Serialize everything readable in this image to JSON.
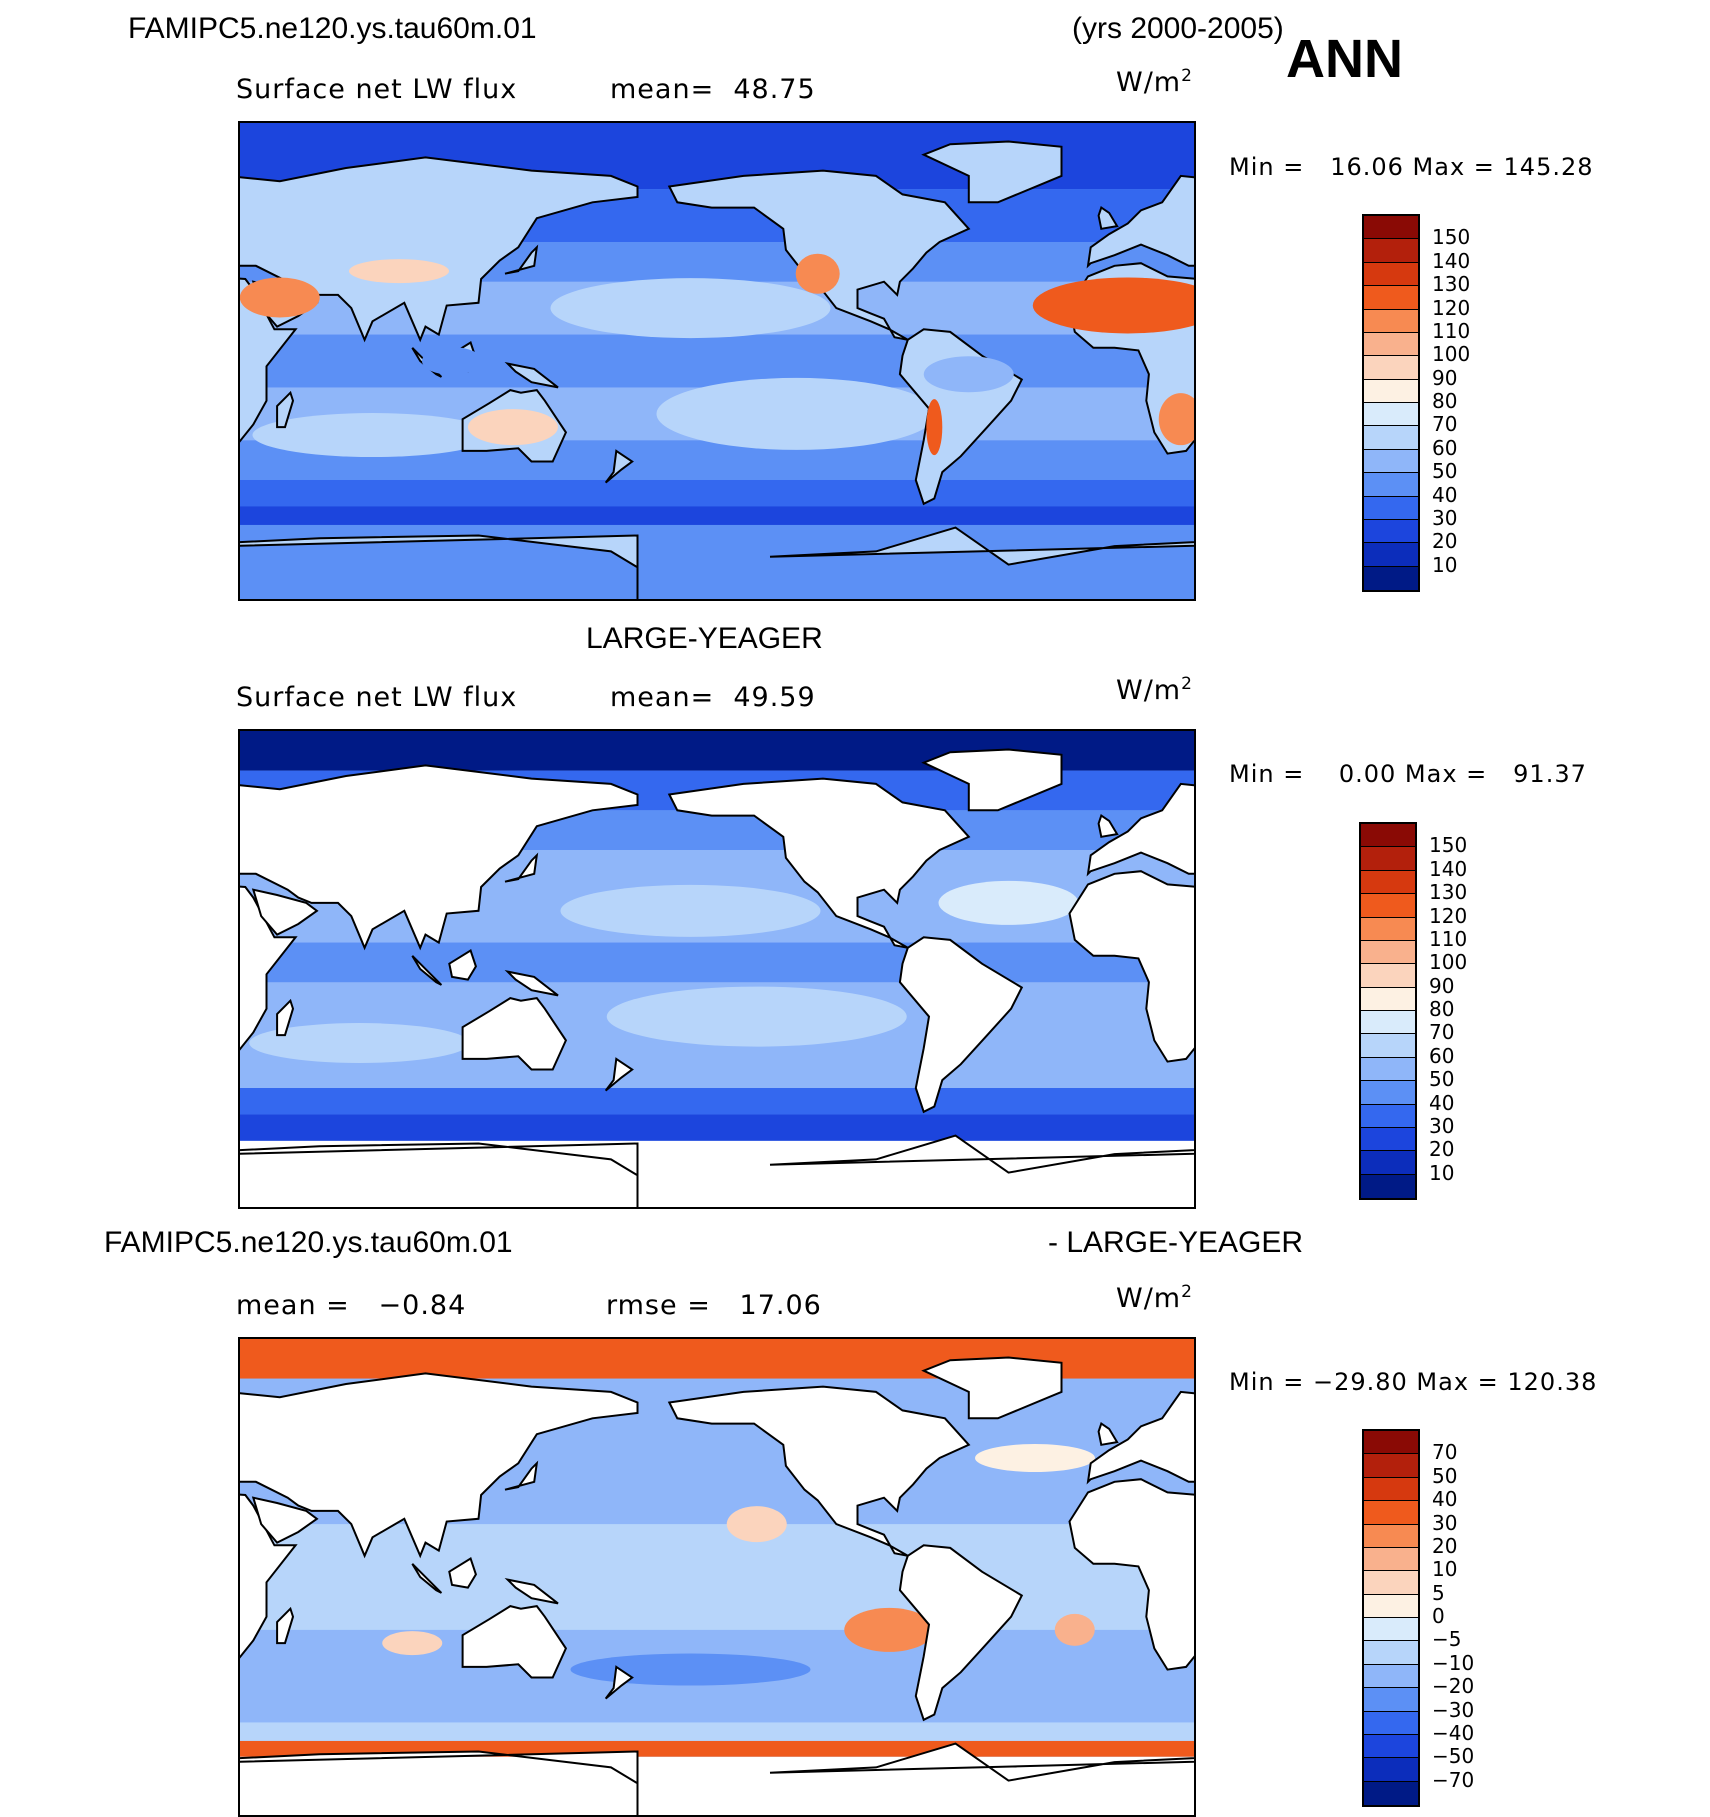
{
  "header": {
    "case_name": "FAMIPC5.ne120.ys.tau60m.01",
    "years": "(yrs 2000-2005)",
    "season": "ANN"
  },
  "panels": [
    {
      "title": "",
      "left_label": "Surface net LW flux",
      "middle_label": "mean=  48.75",
      "units": "W/m",
      "units_exp": "2",
      "minmax": "Min =   16.06 Max = 145.28",
      "colorbar": {
        "labels": [
          "150",
          "140",
          "130",
          "120",
          "110",
          "100",
          "90",
          "80",
          "70",
          "60",
          "50",
          "40",
          "30",
          "20",
          "10"
        ],
        "colors": [
          "#8a0a05",
          "#b3200c",
          "#d6390f",
          "#ef5a1d",
          "#f78a52",
          "#f9b18d",
          "#fbd4bd",
          "#fdf1e3",
          "#d9ebfb",
          "#b7d5fa",
          "#8fb6f9",
          "#5c90f5",
          "#3468ef",
          "#1c45dd",
          "#0c2dbb",
          "#001a86"
        ]
      },
      "land_masked": false
    },
    {
      "title": "LARGE-YEAGER",
      "left_label": "Surface net LW flux",
      "middle_label": "mean=  49.59",
      "units": "W/m",
      "units_exp": "2",
      "minmax": "Min =    0.00 Max =   91.37",
      "colorbar": {
        "labels": [
          "150",
          "140",
          "130",
          "120",
          "110",
          "100",
          "90",
          "80",
          "70",
          "60",
          "50",
          "40",
          "30",
          "20",
          "10"
        ],
        "colors": [
          "#8a0a05",
          "#b3200c",
          "#d6390f",
          "#ef5a1d",
          "#f78a52",
          "#f9b18d",
          "#fbd4bd",
          "#fdf1e3",
          "#d9ebfb",
          "#b7d5fa",
          "#8fb6f9",
          "#5c90f5",
          "#3468ef",
          "#1c45dd",
          "#0c2dbb",
          "#001a86"
        ]
      },
      "land_masked": true
    },
    {
      "title_left": "FAMIPC5.ne120.ys.tau60m.01",
      "title_right": "- LARGE-YEAGER",
      "left_label": "mean =   −0.84",
      "middle_label": "rmse =   17.06",
      "units": "W/m",
      "units_exp": "2",
      "minmax": "Min = −29.80 Max = 120.38",
      "colorbar": {
        "labels": [
          "70",
          "50",
          "40",
          "30",
          "20",
          "10",
          "5",
          "0",
          "−5",
          "−10",
          "−20",
          "−30",
          "−40",
          "−50",
          "−70"
        ],
        "colors": [
          "#8a0a05",
          "#b3200c",
          "#d6390f",
          "#ef5a1d",
          "#f78a52",
          "#f9b18d",
          "#fbd4bd",
          "#fdf1e3",
          "#d9ebfb",
          "#b7d5fa",
          "#8fb6f9",
          "#5c90f5",
          "#3468ef",
          "#1c45dd",
          "#0c2dbb",
          "#001a86"
        ]
      },
      "land_masked": true
    }
  ]
}
